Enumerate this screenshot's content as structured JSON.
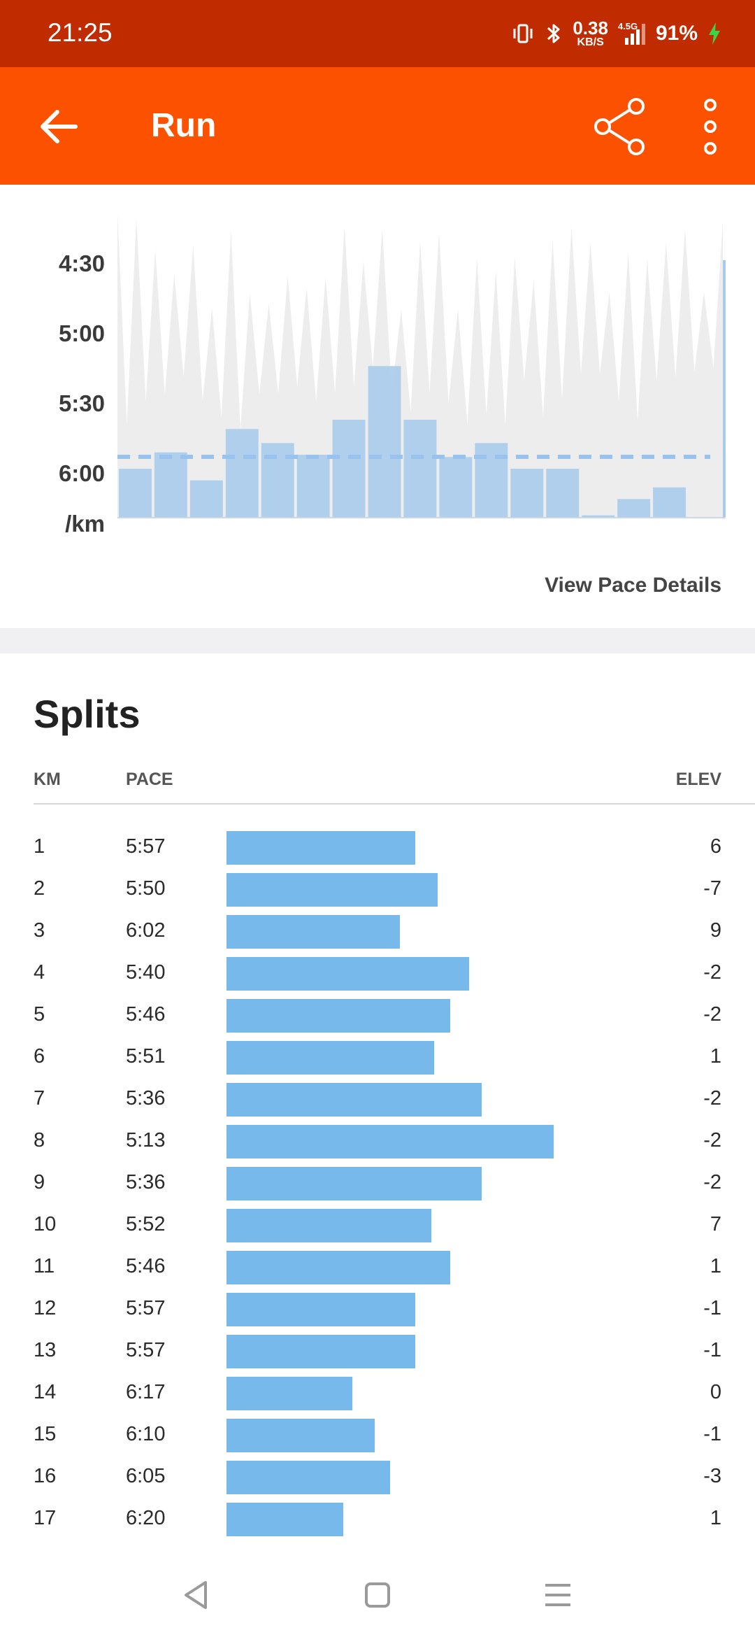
{
  "status_bar": {
    "time": "21:25",
    "net_speed_value": "0.38",
    "net_speed_unit": "KB/S",
    "network_type": "4.5G",
    "battery": "91%",
    "icons": [
      "vibrate-icon",
      "bluetooth-icon",
      "signal-icon",
      "battery-charging-icon"
    ]
  },
  "app_bar": {
    "title": "Run",
    "icons": [
      "back-arrow-icon",
      "share-icon",
      "more-vertical-icon"
    ]
  },
  "pace_chart": {
    "y_labels": [
      "4:30",
      "5:00",
      "5:30",
      "6:00",
      "/km"
    ],
    "view_details": "View Pace Details"
  },
  "splits": {
    "title": "Splits",
    "headers": {
      "km": "KM",
      "pace": "PACE",
      "elev": "ELEV"
    },
    "rows": [
      {
        "km": "1",
        "pace": "5:57",
        "elev": "6"
      },
      {
        "km": "2",
        "pace": "5:50",
        "elev": "-7"
      },
      {
        "km": "3",
        "pace": "6:02",
        "elev": "9"
      },
      {
        "km": "4",
        "pace": "5:40",
        "elev": "-2"
      },
      {
        "km": "5",
        "pace": "5:46",
        "elev": "-2"
      },
      {
        "km": "6",
        "pace": "5:51",
        "elev": "1"
      },
      {
        "km": "7",
        "pace": "5:36",
        "elev": "-2"
      },
      {
        "km": "8",
        "pace": "5:13",
        "elev": "-2"
      },
      {
        "km": "9",
        "pace": "5:36",
        "elev": "-2"
      },
      {
        "km": "10",
        "pace": "5:52",
        "elev": "7"
      },
      {
        "km": "11",
        "pace": "5:46",
        "elev": "1"
      },
      {
        "km": "12",
        "pace": "5:57",
        "elev": "-1"
      },
      {
        "km": "13",
        "pace": "5:57",
        "elev": "-1"
      },
      {
        "km": "14",
        "pace": "6:17",
        "elev": "0"
      },
      {
        "km": "15",
        "pace": "6:10",
        "elev": "-1"
      },
      {
        "km": "16",
        "pace": "6:05",
        "elev": "-3"
      },
      {
        "km": "17",
        "pace": "6:20",
        "elev": "1"
      }
    ]
  },
  "colors": {
    "status_bar": "#c02c00",
    "app_bar": "#fc5200",
    "pace_bar": "#a8cbeb",
    "split_bar": "#78b9ec",
    "avg_line": "#98c3ee",
    "background_trace": "#ededed"
  },
  "nav_bar": {
    "icons": [
      "nav-back-icon",
      "nav-home-icon",
      "nav-menu-icon"
    ]
  }
}
